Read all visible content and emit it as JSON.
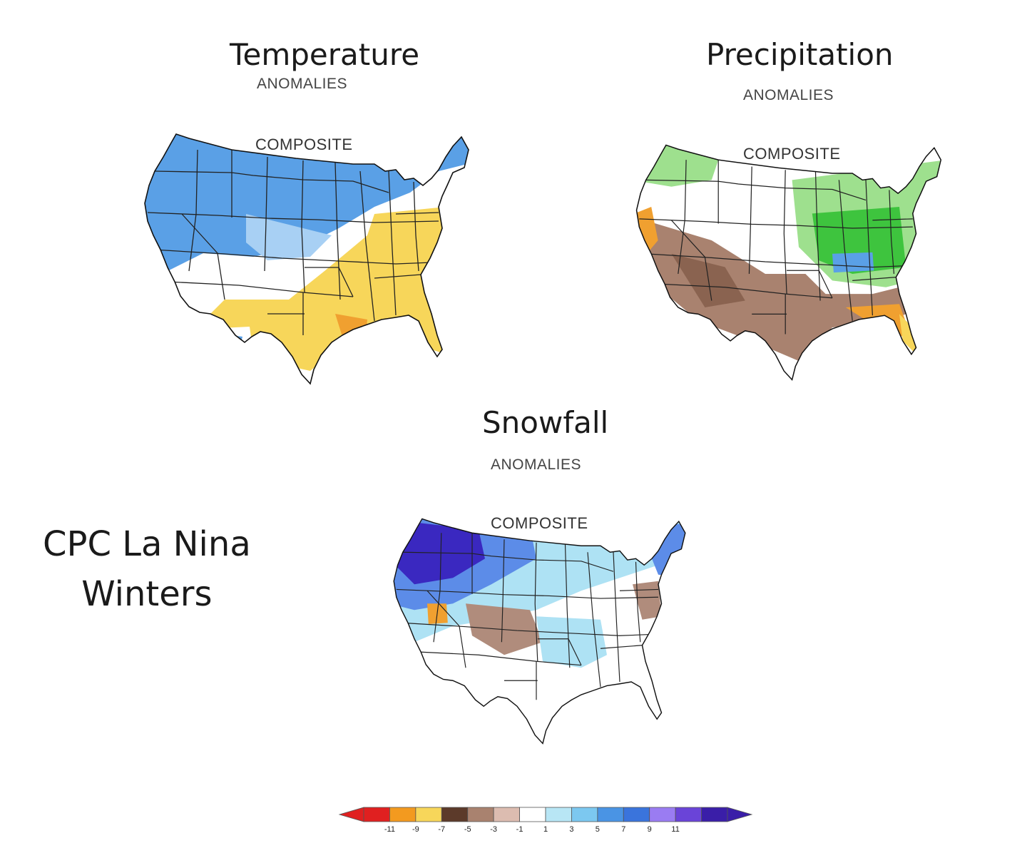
{
  "panels": {
    "temperature": {
      "title": "Temperature",
      "subtitle": "ANOMALIES",
      "map_label": "COMPOSITE"
    },
    "precipitation": {
      "title": "Precipitation",
      "subtitle": "ANOMALIES",
      "map_label": "COMPOSITE"
    },
    "snowfall": {
      "title": "Snowfall",
      "subtitle": "ANOMALIES",
      "map_label": "COMPOSITE"
    }
  },
  "side_label": {
    "line1": "CPC La Nina",
    "line2": "Winters"
  },
  "legend": {
    "colors": [
      "#e02020",
      "#f39a1f",
      "#f7d65a",
      "#5c3a2a",
      "#a9826f",
      "#dcbcb0",
      "#ffffff",
      "#b8e6f5",
      "#7cc8f0",
      "#4a94e4",
      "#3a74dc",
      "#9a7cf2",
      "#6a44d8",
      "#3a1ea8"
    ],
    "tick_labels": [
      "-11",
      "-9",
      "-7",
      "-5",
      "-3",
      "-1",
      "1",
      "3",
      "5",
      "7",
      "9",
      "11"
    ]
  },
  "palette": {
    "cold": "#5aa0e6",
    "cold_light": "#a8d0f4",
    "warm": "#f7d65a",
    "warm_deep": "#f0a030",
    "wet": "#3ec43e",
    "wet_light": "#9ee08e",
    "dry": "#a9826f",
    "dry_deep": "#8a6350",
    "snow_heavy": "#3a28c0",
    "snow_mod": "#5c8ce8",
    "snow_light": "#aee2f4",
    "snow_less": "#b08c7c"
  }
}
